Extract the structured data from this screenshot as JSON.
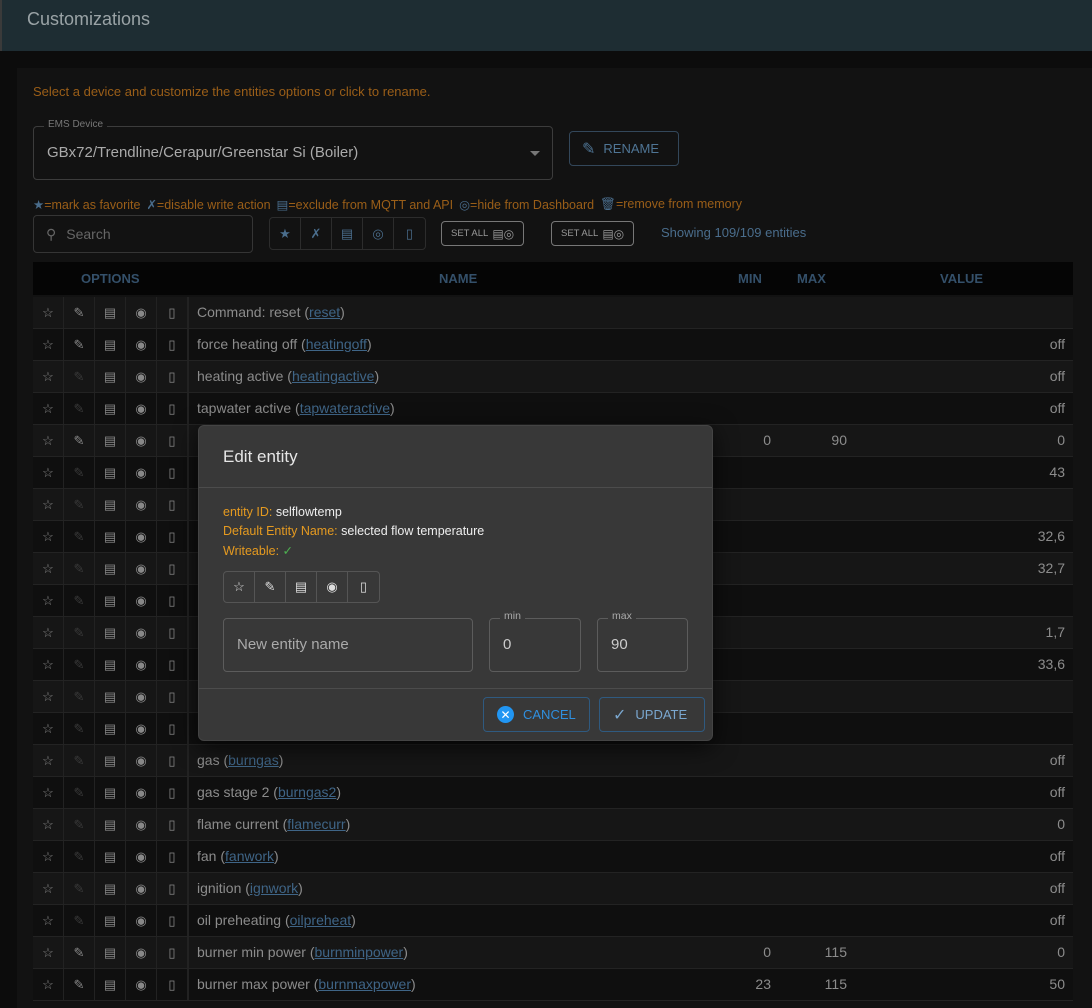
{
  "header": {
    "title": "Customizations"
  },
  "hint": "Select a device and customize the entities options or click to rename.",
  "device_select": {
    "label": "EMS Device",
    "value": "GBx72/Trendline/Cerapur/Greenstar Si (Boiler)"
  },
  "rename_label": "RENAME",
  "legend": [
    "=mark as favorite",
    "=disable write action",
    "=exclude from MQTT and API",
    "=hide from Dashboard",
    "=remove from memory"
  ],
  "search": {
    "placeholder": "Search"
  },
  "set_all_1": "SET ALL",
  "set_all_2": "SET ALL",
  "showing": "Showing 109/109 entities",
  "table": {
    "headers": {
      "options": "OPTIONS",
      "name": "NAME",
      "min": "MIN",
      "max": "MAX",
      "value": "VALUE"
    },
    "rows": [
      {
        "name": "Command: reset (",
        "id": "reset",
        "min": "",
        "max": "",
        "value": "",
        "writeable": true
      },
      {
        "name": "force heating off (",
        "id": "heatingoff",
        "min": "",
        "max": "",
        "value": "off",
        "writeable": true
      },
      {
        "name": "heating active (",
        "id": "heatingactive",
        "min": "",
        "max": "",
        "value": "off",
        "writeable": false
      },
      {
        "name": "tapwater active (",
        "id": "tapwateractive",
        "min": "",
        "max": "",
        "value": "off",
        "writeable": false
      },
      {
        "name": "",
        "id": "",
        "min": "0",
        "max": "90",
        "value": "0",
        "writeable": true
      },
      {
        "name": "",
        "id": "",
        "min": "",
        "max": "",
        "value": "43",
        "writeable": false
      },
      {
        "name": "",
        "id": "",
        "min": "",
        "max": "",
        "value": "",
        "writeable": false
      },
      {
        "name": "",
        "id": "",
        "min": "",
        "max": "",
        "value": "32,6",
        "writeable": false
      },
      {
        "name": "",
        "id": "",
        "min": "",
        "max": "",
        "value": "32,7",
        "writeable": false
      },
      {
        "name": "",
        "id": "",
        "min": "",
        "max": "",
        "value": "",
        "writeable": false
      },
      {
        "name": "",
        "id": "",
        "min": "",
        "max": "",
        "value": "1,7",
        "writeable": false
      },
      {
        "name": "",
        "id": "",
        "min": "",
        "max": "",
        "value": "33,6",
        "writeable": false
      },
      {
        "name": "",
        "id": "",
        "min": "",
        "max": "",
        "value": "",
        "writeable": false
      },
      {
        "name": "",
        "id": "",
        "min": "",
        "max": "",
        "value": "",
        "writeable": false
      },
      {
        "name": "gas (",
        "id": "burngas",
        "min": "",
        "max": "",
        "value": "off",
        "writeable": false
      },
      {
        "name": "gas stage 2 (",
        "id": "burngas2",
        "min": "",
        "max": "",
        "value": "off",
        "writeable": false
      },
      {
        "name": "flame current (",
        "id": "flamecurr",
        "min": "",
        "max": "",
        "value": "0",
        "writeable": false
      },
      {
        "name": "fan (",
        "id": "fanwork",
        "min": "",
        "max": "",
        "value": "off",
        "writeable": false
      },
      {
        "name": "ignition (",
        "id": "ignwork",
        "min": "",
        "max": "",
        "value": "off",
        "writeable": false
      },
      {
        "name": "oil preheating (",
        "id": "oilpreheat",
        "min": "",
        "max": "",
        "value": "off",
        "writeable": false
      },
      {
        "name": "burner min power (",
        "id": "burnminpower",
        "min": "0",
        "max": "115",
        "value": "0",
        "writeable": true
      },
      {
        "name": "burner max power (",
        "id": "burnmaxpower",
        "min": "23",
        "max": "115",
        "value": "50",
        "writeable": true
      }
    ]
  },
  "modal": {
    "title": "Edit entity",
    "entity_id_label": "entity ID:",
    "entity_id": "selflowtemp",
    "default_name_label": "Default Entity Name:",
    "default_name": "selected flow temperature",
    "writeable_label": "Writeable:",
    "writeable_value": "✓",
    "name_placeholder": "New entity name",
    "min_label": "min",
    "min_value": "0",
    "max_label": "max",
    "max_value": "90",
    "cancel": "CANCEL",
    "update": "UPDATE"
  }
}
